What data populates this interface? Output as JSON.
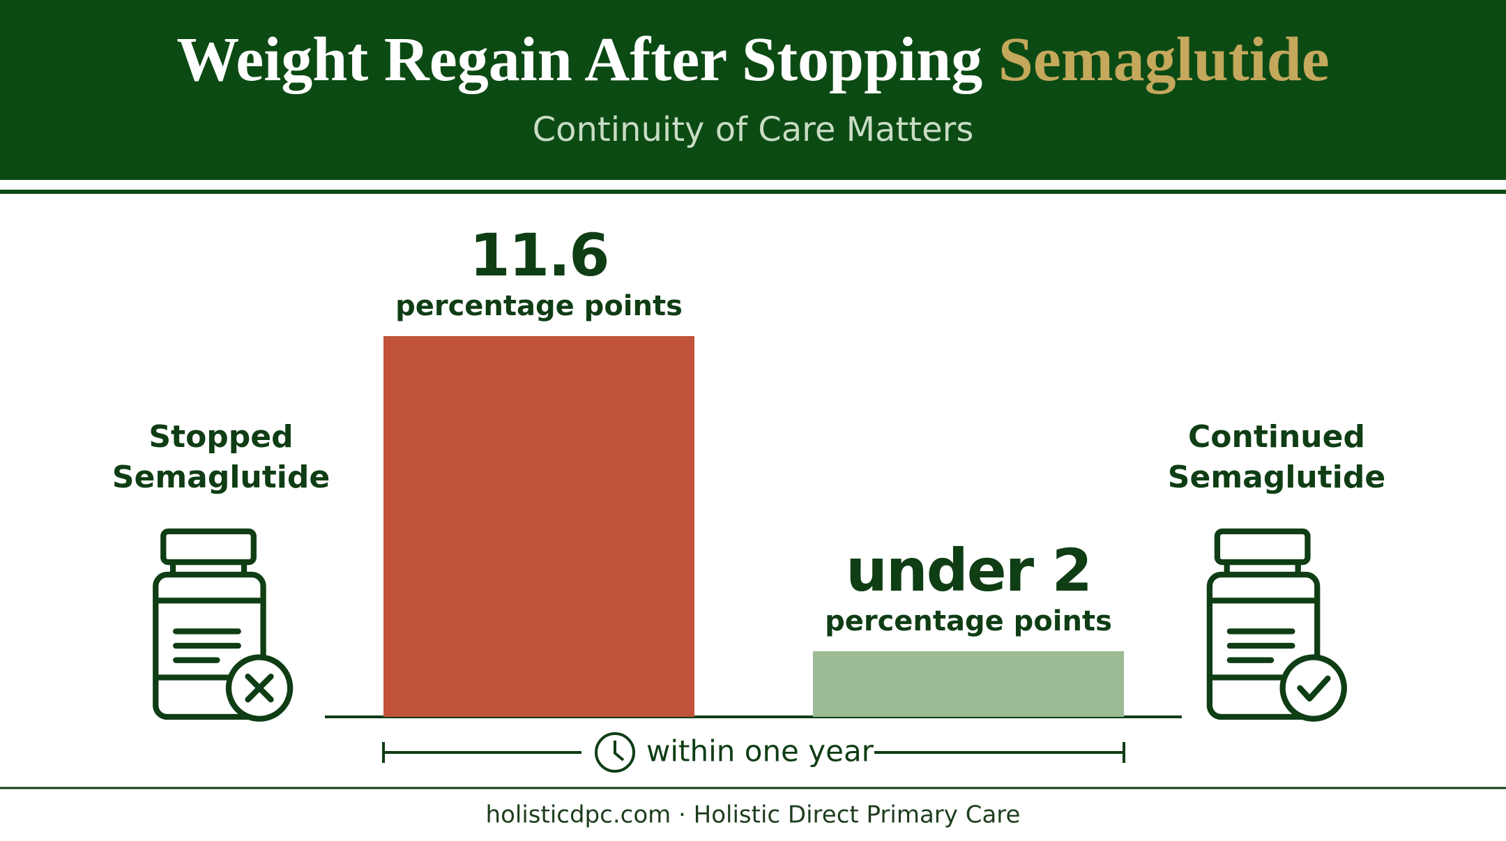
{
  "chart_data": {
    "type": "bar",
    "title": "Weight Regain After Stopping",
    "title_highlight": "Semaglutide",
    "subtitle": "Continuity of Care Matters",
    "categories": [
      "Stopped Semaglutide",
      "Continued Semaglutide"
    ],
    "values": [
      11.6,
      2
    ],
    "value_labels": [
      "11.6",
      "under 2"
    ],
    "unit_label": "percentage points",
    "colors": [
      "#c0533a",
      "#9bbb94"
    ],
    "period_label": "within one year",
    "footer": "holisticdpc.com · Holistic Direct Primary Care"
  }
}
